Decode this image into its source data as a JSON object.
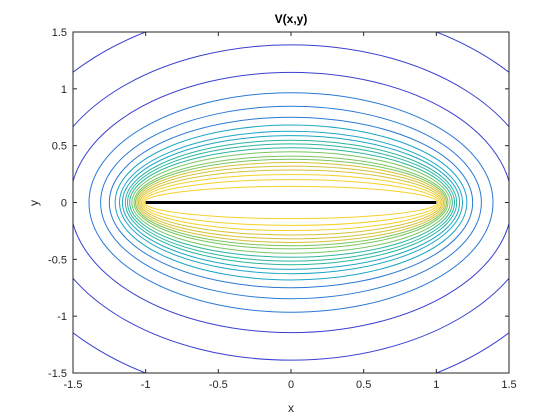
{
  "chart_data": {
    "type": "contour",
    "title": "V(x,y)",
    "xlabel": "x",
    "ylabel": "y",
    "xlim": [
      -1.5,
      1.5
    ],
    "ylim": [
      -1.5,
      1.5
    ],
    "xticks": [
      "-1.5",
      "-1",
      "-0.5",
      "0",
      "0.5",
      "1",
      "1.5"
    ],
    "yticks": [
      "1.5",
      "1",
      "0.5",
      "0",
      "-0.5",
      "-1",
      "-1.5"
    ],
    "xtick_values": [
      -1.5,
      -1,
      -0.5,
      0,
      0.5,
      1,
      1.5
    ],
    "ytick_values": [
      1.5,
      1,
      0.5,
      0,
      -0.5,
      -1,
      -1.5
    ],
    "segment": {
      "x": [
        -1,
        1
      ],
      "y": [
        0,
        0
      ],
      "color": "#000000"
    },
    "contour_semi_axes_x": [
      1.01,
      1.02,
      1.03,
      1.04,
      1.05,
      1.06,
      1.07,
      1.08,
      1.095,
      1.11,
      1.125,
      1.14,
      1.16,
      1.18,
      1.21,
      1.25,
      1.31,
      1.39,
      1.52,
      1.71,
      2.0
    ],
    "colormap": [
      "#3a3fcf",
      "#2a79d4",
      "#1ca6c4",
      "#2cb5a0",
      "#79c65f",
      "#d6c23a",
      "#f5d12a"
    ],
    "frame_color": "#262626"
  }
}
